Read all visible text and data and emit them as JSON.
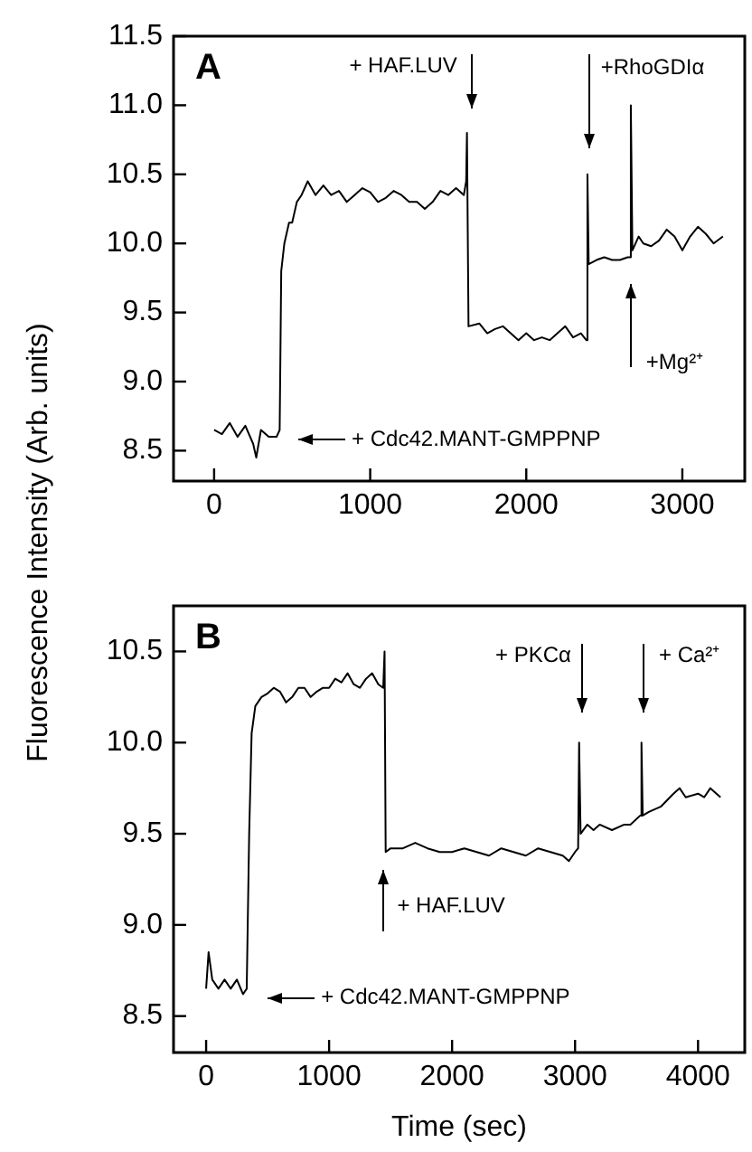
{
  "chart_data": [
    {
      "type": "line",
      "title": "A",
      "ylabel": "Fluorescence Intensity (Arb. units)",
      "xlim": [
        -260,
        3400
      ],
      "ylim": [
        8.28,
        11.5
      ],
      "xticks": [
        0,
        1000,
        2000,
        3000
      ],
      "yticks": [
        8.5,
        {
          "value": 9,
          "label": "9.0"
        },
        9.5,
        {
          "value": 10,
          "label": "10.0"
        },
        10.5,
        {
          "value": 11,
          "label": "11.0"
        },
        11.5
      ],
      "marker": "none",
      "line_style": "solid",
      "legend": false,
      "series": [
        {
          "color": "#000000",
          "x": [
            0,
            50,
            100,
            150,
            200,
            250,
            270,
            300,
            350,
            400,
            420,
            430,
            450,
            480,
            500,
            530,
            560,
            600,
            650,
            700,
            750,
            800,
            850,
            900,
            950,
            1000,
            1050,
            1100,
            1150,
            1200,
            1250,
            1300,
            1350,
            1400,
            1450,
            1500,
            1550,
            1600,
            1615,
            1620,
            1630,
            1700,
            1750,
            1800,
            1850,
            1900,
            1950,
            2000,
            2050,
            2100,
            2150,
            2200,
            2250,
            2300,
            2350,
            2385,
            2392,
            2400,
            2450,
            2500,
            2550,
            2600,
            2650,
            2665,
            2670,
            2680,
            2720,
            2750,
            2800,
            2850,
            2900,
            2950,
            3000,
            3050,
            3100,
            3150,
            3200,
            3260
          ],
          "values": [
            8.65,
            8.62,
            8.7,
            8.6,
            8.68,
            8.55,
            8.45,
            8.65,
            8.6,
            8.6,
            8.65,
            9.8,
            10.0,
            10.15,
            10.15,
            10.3,
            10.35,
            10.45,
            10.35,
            10.42,
            10.35,
            10.38,
            10.3,
            10.35,
            10.4,
            10.37,
            10.3,
            10.33,
            10.38,
            10.35,
            10.3,
            10.3,
            10.25,
            10.3,
            10.38,
            10.35,
            10.4,
            10.35,
            10.45,
            10.8,
            9.4,
            9.42,
            9.35,
            9.38,
            9.4,
            9.35,
            9.3,
            9.35,
            9.3,
            9.32,
            9.3,
            9.35,
            9.4,
            9.32,
            9.35,
            9.3,
            10.5,
            9.85,
            9.88,
            9.9,
            9.88,
            9.88,
            9.9,
            9.9,
            11.0,
            9.95,
            10.05,
            10.0,
            9.98,
            10.02,
            10.1,
            10.05,
            9.95,
            10.05,
            10.12,
            10.07,
            10.0,
            10.05
          ]
        }
      ],
      "annotations": [
        "+ HAF.LUV",
        "+RhoGDIα",
        "+Mg²⁺",
        "+ Cdc42.MANT-GMPPNP"
      ]
    },
    {
      "type": "line",
      "title": "B",
      "xlabel": "Time (sec)",
      "xlim": [
        -265,
        4380
      ],
      "ylim": [
        8.3,
        10.75
      ],
      "xticks": [
        0,
        1000,
        2000,
        3000,
        4000
      ],
      "yticks": [
        8.5,
        {
          "value": 9,
          "label": "9.0"
        },
        9.5,
        {
          "value": 10,
          "label": "10.0"
        },
        10.5
      ],
      "marker": "none",
      "line_style": "solid",
      "legend": false,
      "series": [
        {
          "color": "#000000",
          "x": [
            0,
            20,
            50,
            100,
            150,
            200,
            250,
            300,
            330,
            350,
            370,
            400,
            450,
            500,
            550,
            600,
            650,
            700,
            750,
            800,
            850,
            900,
            950,
            1000,
            1050,
            1100,
            1150,
            1200,
            1250,
            1300,
            1350,
            1400,
            1440,
            1451,
            1460,
            1500,
            1600,
            1700,
            1800,
            1900,
            2000,
            2100,
            2200,
            2300,
            2400,
            2500,
            2600,
            2700,
            2800,
            2900,
            2950,
            3000,
            3025,
            3033,
            3045,
            3100,
            3150,
            3200,
            3300,
            3400,
            3450,
            3530,
            3540,
            3550,
            3600,
            3700,
            3800,
            3850,
            3900,
            4000,
            4050,
            4100,
            4183
          ],
          "values": [
            8.65,
            8.85,
            8.7,
            8.65,
            8.7,
            8.65,
            8.7,
            8.62,
            8.65,
            9.5,
            10.05,
            10.2,
            10.25,
            10.27,
            10.3,
            10.28,
            10.22,
            10.25,
            10.3,
            10.3,
            10.25,
            10.28,
            10.3,
            10.3,
            10.35,
            10.33,
            10.38,
            10.32,
            10.3,
            10.35,
            10.38,
            10.32,
            10.3,
            10.5,
            9.4,
            9.42,
            9.42,
            9.45,
            9.42,
            9.4,
            9.4,
            9.42,
            9.4,
            9.38,
            9.42,
            9.4,
            9.38,
            9.42,
            9.4,
            9.38,
            9.35,
            9.4,
            9.42,
            10.0,
            9.5,
            9.55,
            9.52,
            9.55,
            9.52,
            9.55,
            9.55,
            9.6,
            10.0,
            9.6,
            9.62,
            9.65,
            9.72,
            9.75,
            9.7,
            9.72,
            9.7,
            9.75,
            9.7
          ]
        }
      ],
      "annotations": [
        "+ Cdc42.MANT-GMPPNP",
        "+ HAF.LUV",
        "+ PKCα",
        "+ Ca²⁺"
      ]
    }
  ]
}
